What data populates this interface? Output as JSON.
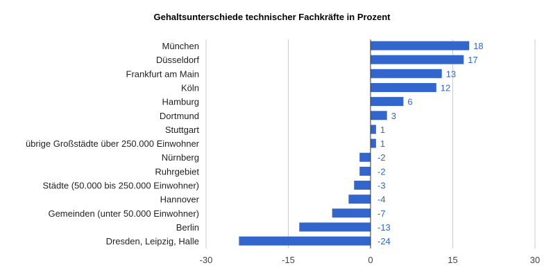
{
  "chart_data": {
    "type": "bar",
    "orientation": "horizontal",
    "title": "Gehaltsunterschiede technischer Fachkräfte in Prozent",
    "xlabel": "",
    "ylabel": "",
    "xlim": [
      -30,
      30
    ],
    "x_ticks": [
      "-30",
      "-15",
      "0",
      "15",
      "30"
    ],
    "grid": true,
    "legend": "none",
    "bar_color": "#3366cc",
    "label_color": "#3366cc",
    "categories": [
      "München",
      "Düsseldorf",
      "Frankfurt am Main",
      "Köln",
      "Hamburg",
      "Dortmund",
      "Stuttgart",
      "übrige Großstädte über 250.000 Einwohner",
      "Nürnberg",
      "Ruhrgebiet",
      "Städte (50.000 bis 250.000 Einwohner)",
      "Hannover",
      "Gemeinden (unter 50.000 Einwohner)",
      "Berlin",
      "Dresden, Leipzig, Halle"
    ],
    "values": [
      18,
      17,
      13,
      12,
      6,
      3,
      1,
      1,
      -2,
      -2,
      -3,
      -4,
      -7,
      -13,
      -24
    ]
  }
}
